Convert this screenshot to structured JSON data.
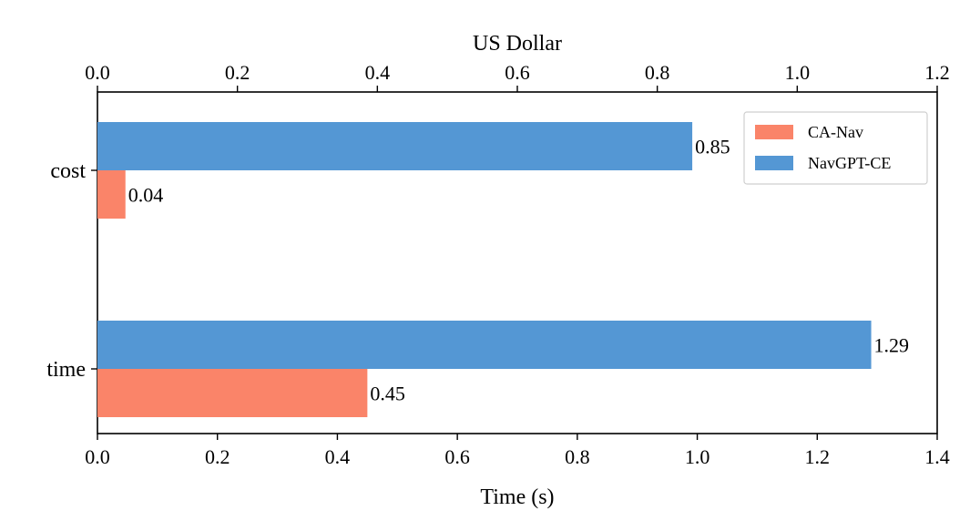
{
  "chart_data": {
    "type": "bar",
    "orientation": "horizontal",
    "categories": [
      "cost",
      "time"
    ],
    "series": [
      {
        "name": "CA-Nav",
        "color": "#FA8469",
        "values": [
          0.04,
          0.45
        ],
        "value_labels": [
          "0.04",
          "0.45"
        ],
        "axis": [
          "top",
          "bottom"
        ]
      },
      {
        "name": "NavGPT-CE",
        "color": "#5497D4",
        "values": [
          0.85,
          1.29
        ],
        "value_labels": [
          "0.85",
          "1.29"
        ],
        "axis": [
          "top",
          "bottom"
        ]
      }
    ],
    "x_bottom": {
      "label": "Time (s)",
      "lim": [
        0,
        1.4
      ],
      "ticks": [
        0,
        0.2,
        0.4,
        0.6,
        0.8,
        1.0,
        1.2,
        1.4
      ],
      "tick_labels": [
        "0.0",
        "0.2",
        "0.4",
        "0.6",
        "0.8",
        "1.0",
        "1.2",
        "1.4"
      ]
    },
    "x_top": {
      "label": "US Dollar",
      "lim": [
        0,
        1.2
      ],
      "ticks": [
        0,
        0.2,
        0.4,
        0.6,
        0.8,
        1.0,
        1.2
      ],
      "tick_labels": [
        "0.0",
        "0.2",
        "0.4",
        "0.6",
        "0.8",
        "1.0",
        "1.2"
      ]
    },
    "grid": false,
    "legend": {
      "placement": "top-right",
      "entries": [
        "CA-Nav",
        "NavGPT-CE"
      ]
    }
  }
}
